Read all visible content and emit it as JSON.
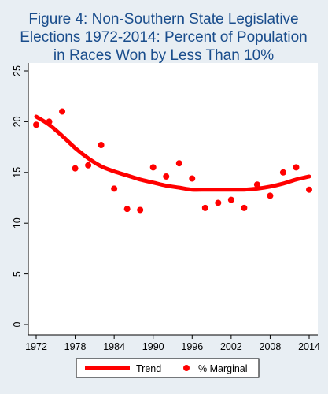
{
  "chart_data": {
    "type": "scatter",
    "title_lines": [
      "Figure 4: Non-Southern State Legislative",
      "Elections 1972-2014: Percent of Population",
      "in Races Won by Less Than 10%"
    ],
    "xlabel": "",
    "ylabel": "",
    "xlim": [
      1971,
      2015
    ],
    "ylim": [
      0,
      25
    ],
    "x_ticks": [
      1972,
      1978,
      1984,
      1990,
      1996,
      2002,
      2008,
      2014
    ],
    "y_ticks": [
      0,
      5,
      10,
      15,
      20,
      25
    ],
    "grid": false,
    "legend_position": "bottom",
    "series": [
      {
        "name": "Trend",
        "kind": "line",
        "color": "#ff0000",
        "x": [
          1972,
          1974,
          1976,
          1978,
          1980,
          1982,
          1984,
          1986,
          1988,
          1990,
          1992,
          1994,
          1996,
          1998,
          2000,
          2002,
          2004,
          2006,
          2008,
          2010,
          2012,
          2014
        ],
        "y": [
          20.5,
          19.7,
          18.6,
          17.4,
          16.4,
          15.6,
          15.1,
          14.7,
          14.3,
          14.0,
          13.7,
          13.5,
          13.3,
          13.3,
          13.3,
          13.3,
          13.3,
          13.4,
          13.6,
          13.9,
          14.3,
          14.6
        ]
      },
      {
        "name": "% Marginal",
        "kind": "scatter",
        "color": "#ff0000",
        "x": [
          1972,
          1974,
          1976,
          1978,
          1980,
          1982,
          1984,
          1986,
          1988,
          1990,
          1992,
          1994,
          1996,
          1998,
          2000,
          2002,
          2004,
          2006,
          2008,
          2010,
          2012,
          2014
        ],
        "y": [
          19.7,
          20.0,
          21.0,
          15.4,
          15.7,
          17.7,
          13.4,
          11.4,
          11.3,
          15.5,
          14.6,
          15.9,
          14.4,
          11.5,
          12.0,
          12.3,
          11.5,
          13.8,
          12.7,
          15.0,
          15.5,
          13.3
        ]
      }
    ]
  }
}
